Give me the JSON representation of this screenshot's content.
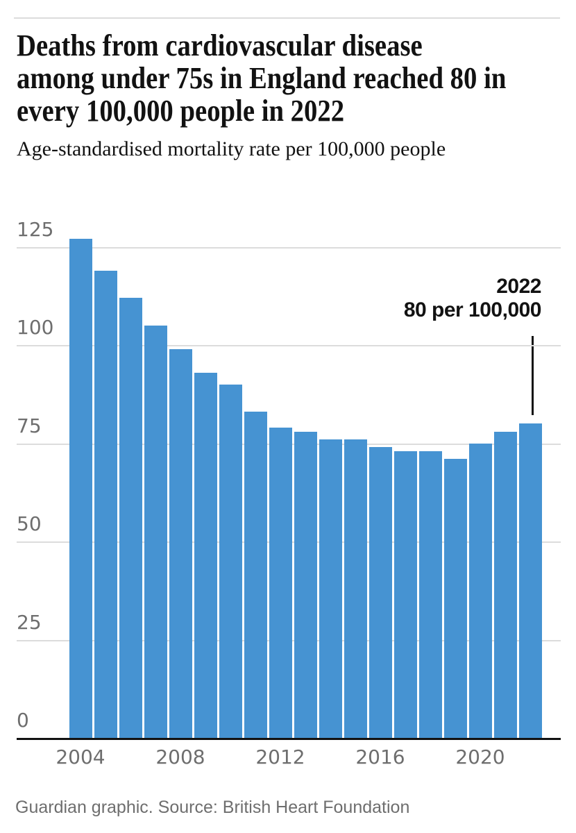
{
  "header": {
    "title_lines": [
      "Deaths from cardiovascular disease",
      "among under 75s in England reached 80 in",
      "every 100,000 people in 2022"
    ],
    "subtitle": "Age-standardised mortality rate per 100,000 people"
  },
  "annotation": {
    "year": "2022",
    "value_label": "80 per 100,000"
  },
  "source": "Guardian graphic. Source: British Heart Foundation",
  "colors": {
    "bar": "#4693d2",
    "grid": "#dcdcdc",
    "axis": "#121212",
    "tick_text": "#6e6e6e",
    "title_text": "#121212"
  },
  "chart_data": {
    "type": "bar",
    "title": "Deaths from cardiovascular disease among under 75s in England reached 80 in every 100,000 people in 2022",
    "ylabel": "Age-standardised mortality rate per 100,000 people",
    "xlabel": "",
    "categories": [
      "2004",
      "2005",
      "2006",
      "2007",
      "2008",
      "2009",
      "2010",
      "2011",
      "2012",
      "2013",
      "2014",
      "2015",
      "2016",
      "2017",
      "2018",
      "2019",
      "2020",
      "2021",
      "2022"
    ],
    "values": [
      127,
      119,
      112,
      105,
      99,
      93,
      90,
      83,
      79,
      78,
      76,
      76,
      74,
      73,
      73,
      71,
      75,
      78,
      80
    ],
    "ylim": [
      0,
      130
    ],
    "y_ticks": [
      0,
      25,
      50,
      75,
      100,
      125
    ],
    "x_tick_labels": [
      "2004",
      "2008",
      "2012",
      "2016",
      "2020"
    ],
    "grid": "horizontal-only",
    "legend": "none",
    "bar_color": "#4693d2",
    "annotation": {
      "category": "2022",
      "lines": [
        "2022",
        "80 per 100,000"
      ]
    }
  }
}
